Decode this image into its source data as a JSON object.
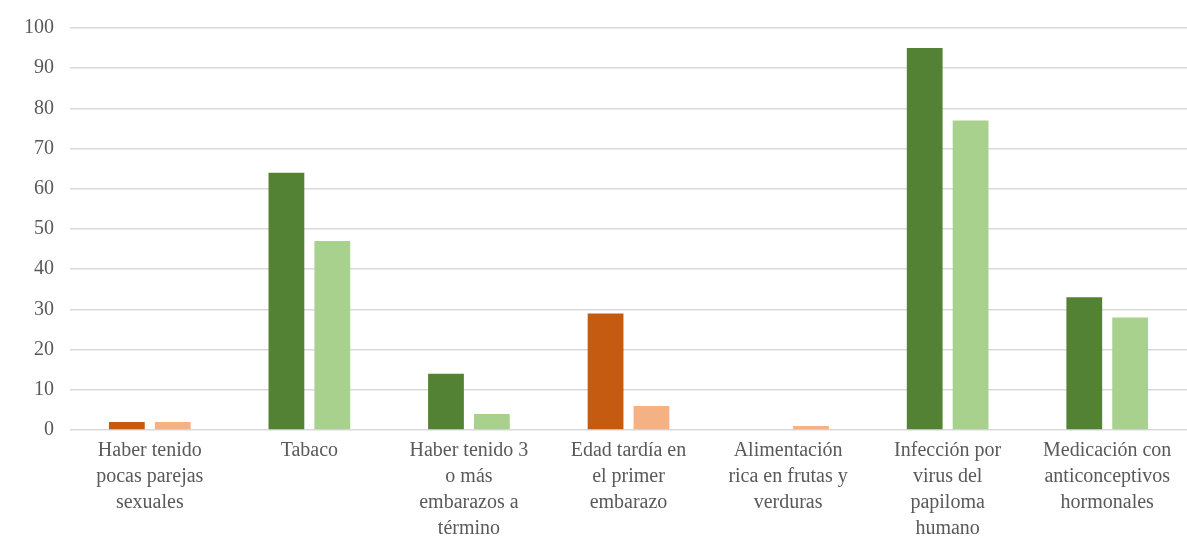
{
  "chart_data": {
    "type": "bar",
    "categories": [
      "Haber tenido pocas parejas sexuales",
      "Tabaco",
      "Haber tenido 3 o más embarazos a término",
      "Edad tardía en el primer embarazo",
      "Alimentación rica en frutas y verduras",
      "Infección por virus del papiloma humano",
      "Medicación con anticonceptivos hormonales"
    ],
    "series": [
      {
        "colors": [
          "#c55a11",
          "#548235",
          "#548235",
          "#c55a11",
          "#c55a11",
          "#548235",
          "#548235"
        ],
        "values": [
          2,
          64,
          14,
          29,
          0,
          95,
          33
        ]
      },
      {
        "colors": [
          "#f4b183",
          "#a9d18e",
          "#a9d18e",
          "#f4b183",
          "#f4b183",
          "#a9d18e",
          "#a9d18e"
        ],
        "values": [
          2,
          47,
          4,
          6,
          1,
          77,
          28
        ]
      }
    ],
    "ylim": [
      0,
      100
    ],
    "yticks": [
      0,
      10,
      20,
      30,
      40,
      50,
      60,
      70,
      80,
      90,
      100
    ],
    "grid": "y"
  }
}
